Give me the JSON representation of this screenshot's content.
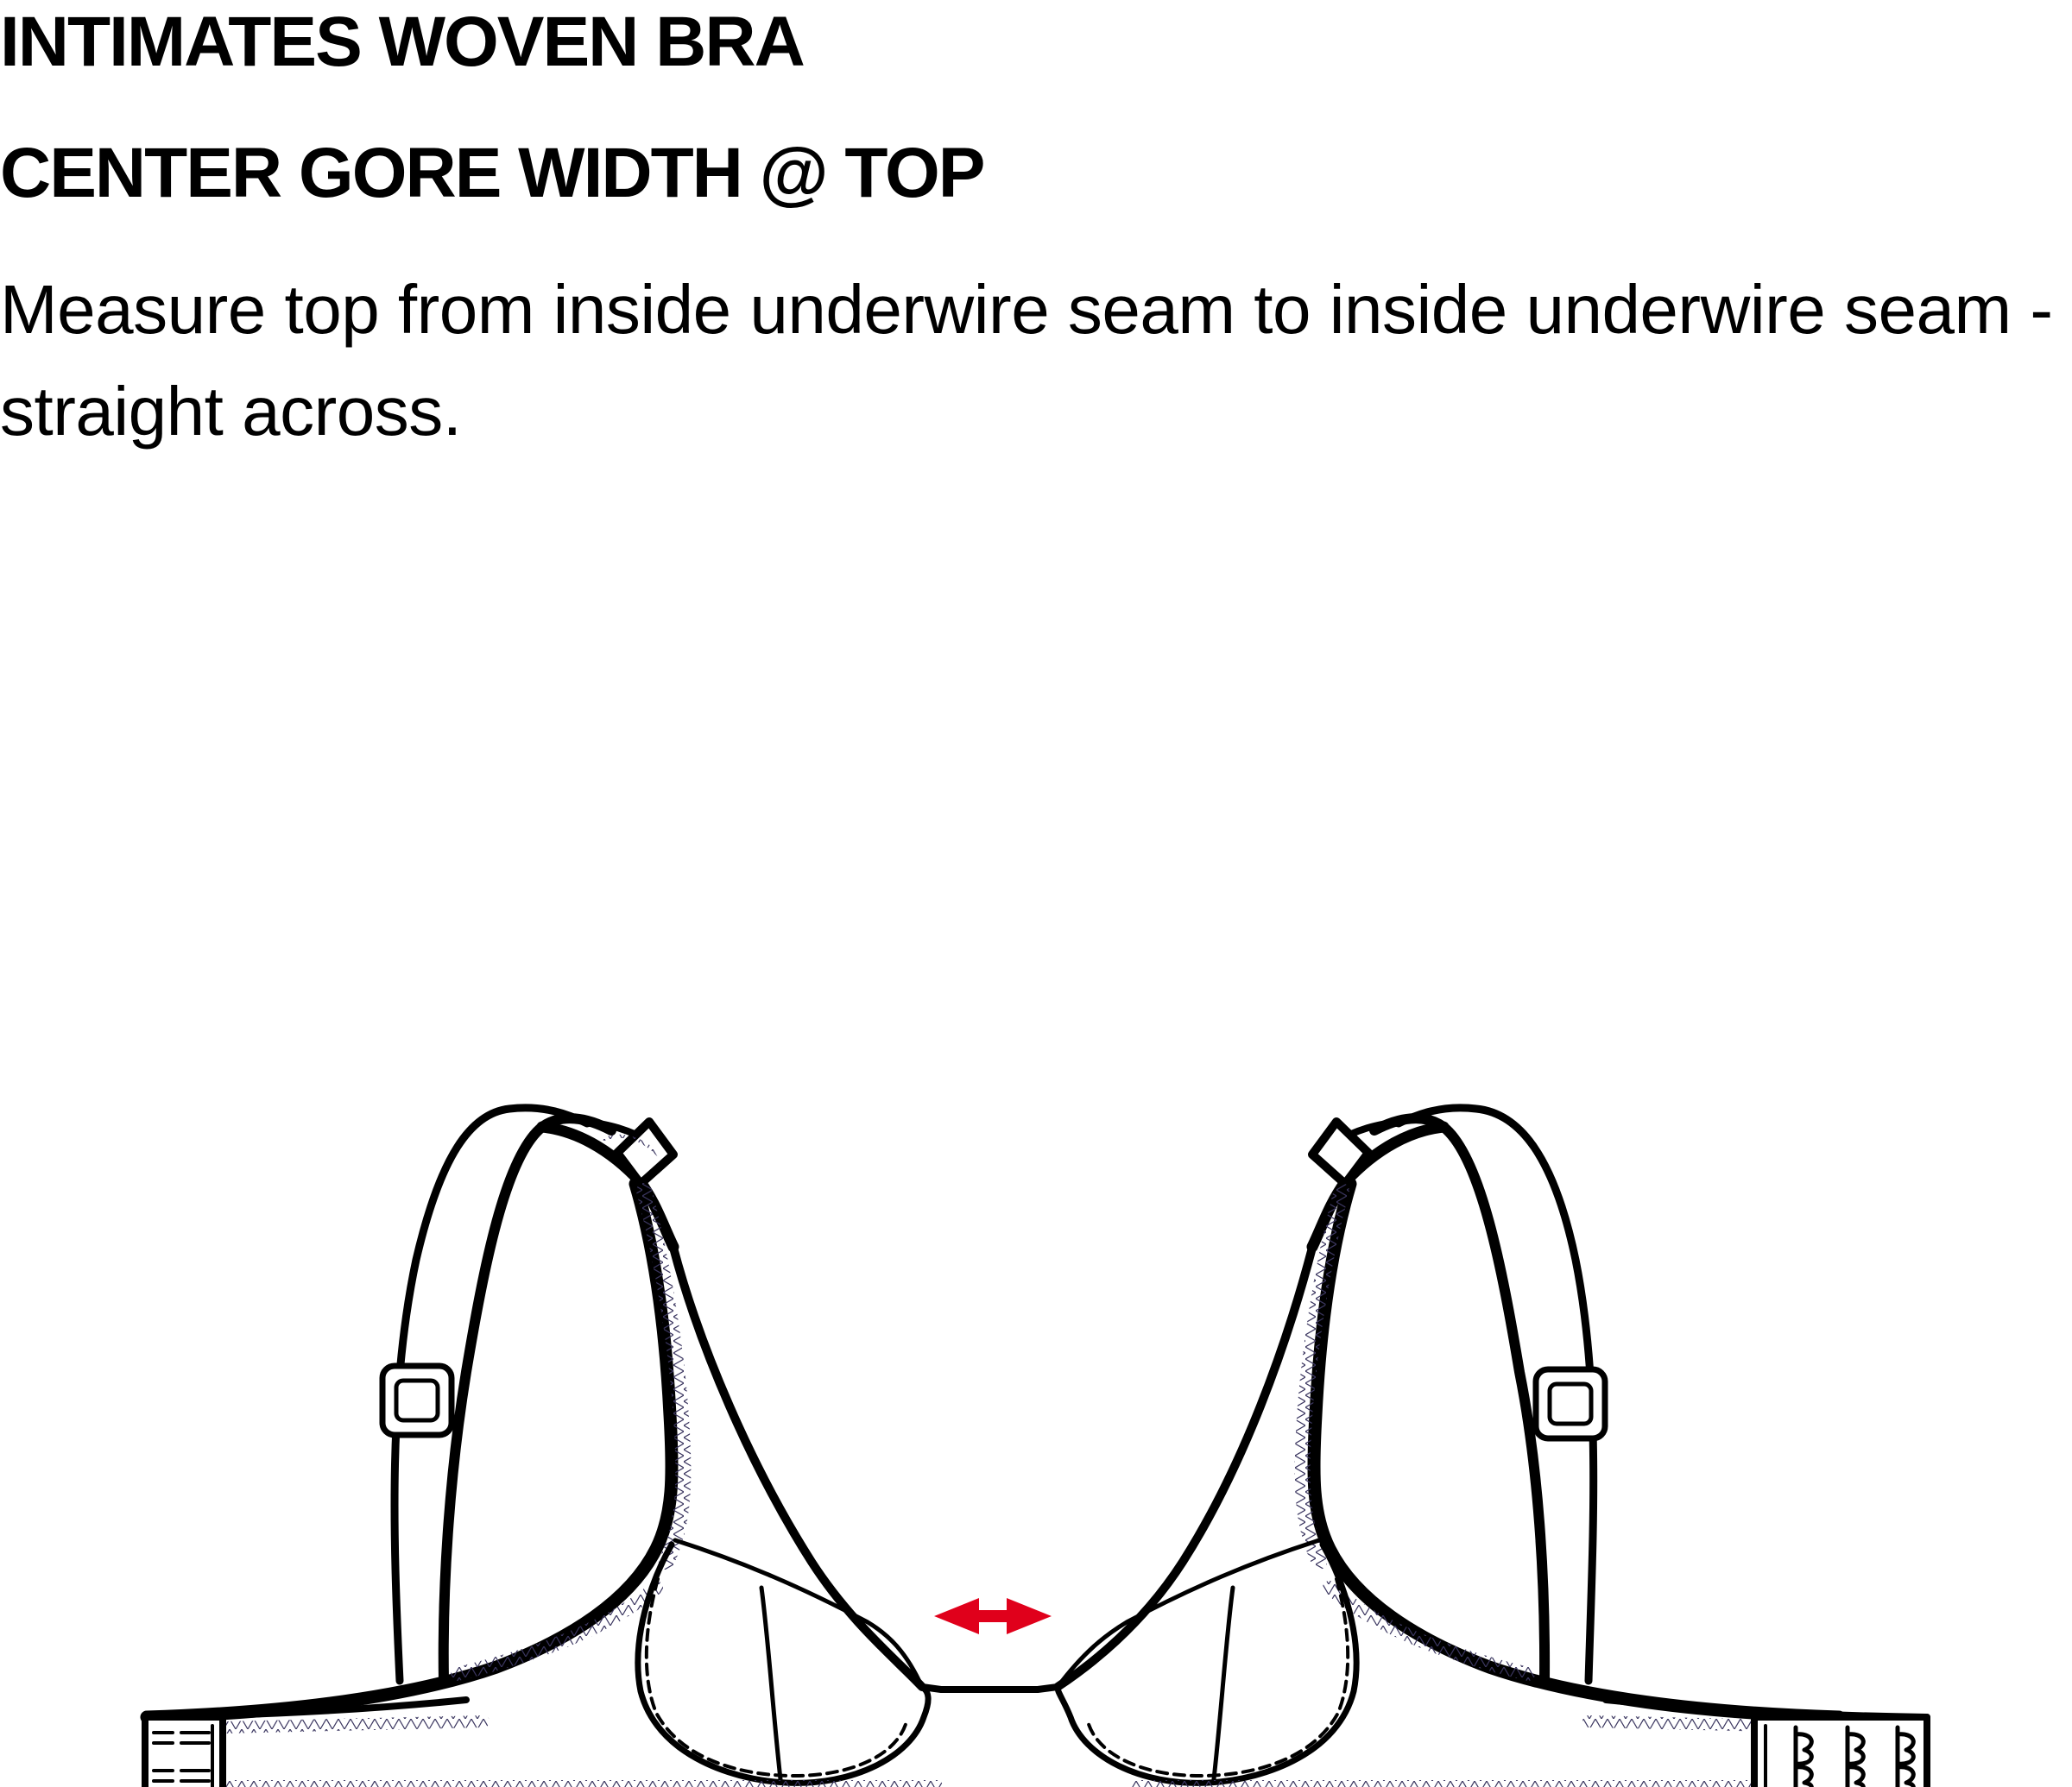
{
  "header": {
    "category": "INTIMATES WOVEN BRA",
    "measurement": "CENTER GORE WIDTH @ TOP"
  },
  "instruction": "Measure top from inside underwire seam to inside underwire seam - straight across.",
  "colors": {
    "ink": "#000000",
    "arrow": "#e0001b",
    "stitch": "#3b3660"
  },
  "icons": {
    "measurement_arrow": "double-headed-horizontal-arrow"
  }
}
